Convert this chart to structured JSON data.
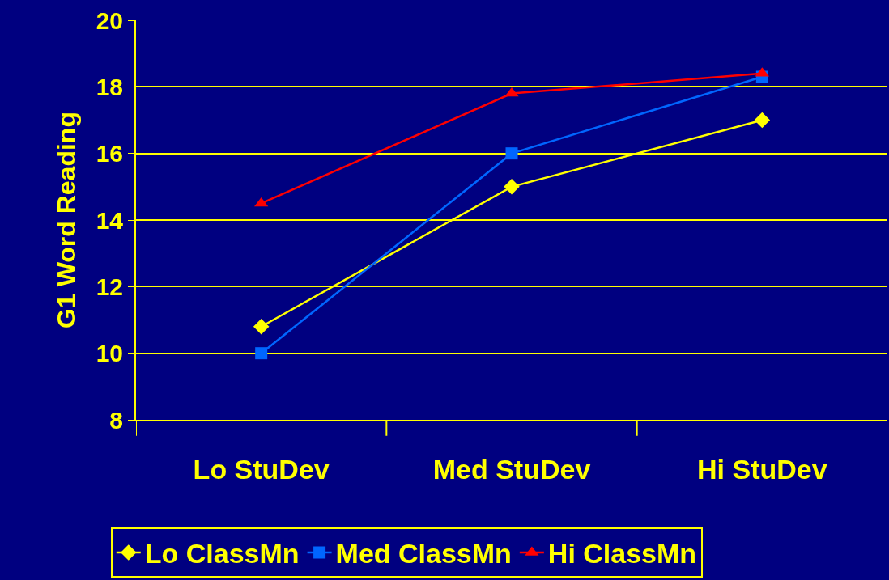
{
  "chart_data": {
    "type": "line",
    "ylabel": "G1 Word Reading",
    "categories": [
      "Lo StuDev",
      "Med StuDev",
      "Hi StuDev"
    ],
    "series": [
      {
        "name": "Lo ClassMn",
        "color": "#ffff00",
        "marker": "diamond",
        "values": [
          10.8,
          15.0,
          17.0
        ]
      },
      {
        "name": "Med ClassMn",
        "color": "#0066ff",
        "marker": "square",
        "values": [
          10.0,
          16.0,
          18.3
        ]
      },
      {
        "name": "Hi ClassMn",
        "color": "#ff0000",
        "marker": "triangle",
        "values": [
          14.5,
          17.8,
          18.4
        ]
      }
    ],
    "ylim": [
      8,
      20
    ],
    "yticks": [
      8,
      10,
      12,
      14,
      16,
      18,
      20
    ],
    "grid": "y",
    "legend": "bottom",
    "line_style": "solid"
  }
}
